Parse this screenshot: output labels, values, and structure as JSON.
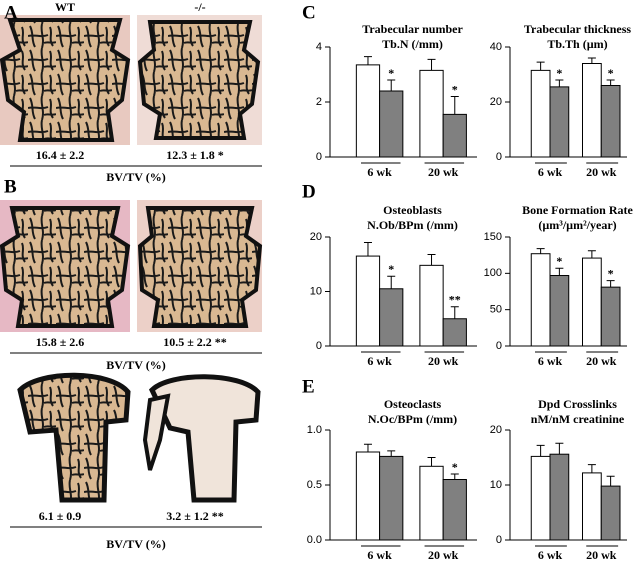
{
  "panel_labels": [
    "A",
    "B",
    "C",
    "D",
    "E"
  ],
  "histology": {
    "genotypes": [
      "WT",
      "-/-"
    ],
    "rows": [
      {
        "values": [
          "16.4 ± 2.2",
          "12.3 ± 1.8 *"
        ],
        "caption": "BV/TV (%)"
      },
      {
        "values": [
          "15.8 ± 2.6",
          "10.5 ± 2.2 **"
        ],
        "caption": "BV/TV (%)"
      },
      {
        "values": [
          "6.1 ± 0.9",
          "3.2 ± 1.2 **"
        ],
        "caption": "BV/TV (%)"
      }
    ]
  },
  "chart_data": [
    {
      "type": "bar",
      "title": "Trabecular number",
      "subtitle": "Tb.N (/mm)",
      "categories": [
        "6 wk",
        "20 wk"
      ],
      "ylim": [
        0,
        4
      ],
      "yticks": [
        0,
        2,
        4
      ],
      "series": [
        {
          "color": "#ffffff",
          "values": [
            3.35,
            3.15
          ],
          "errors": [
            0.3,
            0.4
          ]
        },
        {
          "color": "#808080",
          "values": [
            2.4,
            1.55
          ],
          "errors": [
            0.4,
            0.65
          ],
          "significance": [
            "*",
            "*"
          ]
        }
      ]
    },
    {
      "type": "bar",
      "title": "Trabecular thickness",
      "subtitle": "Tb.Th (µm)",
      "categories": [
        "6 wk",
        "20 wk"
      ],
      "ylim": [
        0,
        40
      ],
      "yticks": [
        0,
        20,
        40
      ],
      "series": [
        {
          "color": "#ffffff",
          "values": [
            31.5,
            34
          ],
          "errors": [
            3,
            2
          ]
        },
        {
          "color": "#808080",
          "values": [
            25.5,
            26
          ],
          "errors": [
            2.5,
            2
          ],
          "significance": [
            "*",
            "*"
          ]
        }
      ]
    },
    {
      "type": "bar",
      "title": "Osteoblasts",
      "subtitle": "N.Ob/BPm (/mm)",
      "categories": [
        "6 wk",
        "20 wk"
      ],
      "ylim": [
        0,
        20
      ],
      "yticks": [
        0,
        10,
        20
      ],
      "series": [
        {
          "color": "#ffffff",
          "values": [
            16.5,
            14.8
          ],
          "errors": [
            2.5,
            2
          ]
        },
        {
          "color": "#808080",
          "values": [
            10.5,
            5
          ],
          "errors": [
            2.3,
            2.2
          ],
          "significance": [
            "*",
            "**"
          ]
        }
      ]
    },
    {
      "type": "bar",
      "title": "Bone Formation Rate",
      "subtitle": "(µm³/µm²/year)",
      "categories": [
        "6 wk",
        "20 wk"
      ],
      "ylim": [
        0,
        150
      ],
      "yticks": [
        0,
        50,
        100,
        150
      ],
      "series": [
        {
          "color": "#ffffff",
          "values": [
            127,
            121
          ],
          "errors": [
            7,
            10
          ]
        },
        {
          "color": "#808080",
          "values": [
            97,
            81
          ],
          "errors": [
            10,
            9
          ],
          "significance": [
            "*",
            "*"
          ]
        }
      ]
    },
    {
      "type": "bar",
      "title": "Osteoclasts",
      "subtitle": "N.Oc/BPm (/mm)",
      "categories": [
        "6 wk",
        "20 wk"
      ],
      "ylim": [
        0,
        1
      ],
      "yticks": [
        {
          "value": 0,
          "label": "0.0"
        },
        {
          "value": 0.5,
          "label": "0.5"
        },
        {
          "value": 1,
          "label": "1.0"
        }
      ],
      "series": [
        {
          "color": "#ffffff",
          "values": [
            0.8,
            0.67
          ],
          "errors": [
            0.07,
            0.08
          ]
        },
        {
          "color": "#808080",
          "values": [
            0.76,
            0.55
          ],
          "errors": [
            0.05,
            0.05
          ],
          "significance": [
            null,
            "*"
          ]
        }
      ]
    },
    {
      "type": "bar",
      "title": "Dpd Crosslinks",
      "subtitle": "nM/nM creatinine",
      "categories": [
        "6 wk",
        "20 wk"
      ],
      "ylim": [
        0,
        20
      ],
      "yticks": [
        0,
        10,
        20
      ],
      "series": [
        {
          "color": "#ffffff",
          "values": [
            15.2,
            12.2
          ],
          "errors": [
            2,
            1.5
          ]
        },
        {
          "color": "#808080",
          "values": [
            15.6,
            9.8
          ],
          "errors": [
            2,
            1.8
          ]
        }
      ]
    }
  ]
}
